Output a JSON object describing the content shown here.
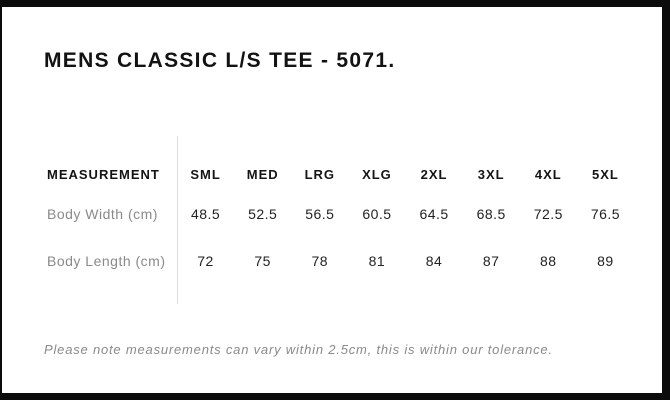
{
  "page": {
    "title": "MENS CLASSIC L/S TEE - 5071."
  },
  "table": {
    "measurement_header": "MEASUREMENT",
    "columns": [
      "SML",
      "MED",
      "LRG",
      "XLG",
      "2XL",
      "3XL",
      "4XL",
      "5XL"
    ],
    "rows": [
      {
        "label": "Body Width (cm)",
        "values": [
          "48.5",
          "52.5",
          "56.5",
          "60.5",
          "64.5",
          "68.5",
          "72.5",
          "76.5"
        ]
      },
      {
        "label": "Body Length (cm)",
        "values": [
          "72",
          "75",
          "78",
          "81",
          "84",
          "87",
          "88",
          "89"
        ]
      }
    ]
  },
  "note": {
    "text": "Please note measurements can vary within 2.5cm, this is within our tolerance."
  },
  "colors": {
    "frame": "#0b0b0b",
    "text_primary": "#141414",
    "text_muted": "#8a8a8a",
    "divider": "#dddddd"
  }
}
